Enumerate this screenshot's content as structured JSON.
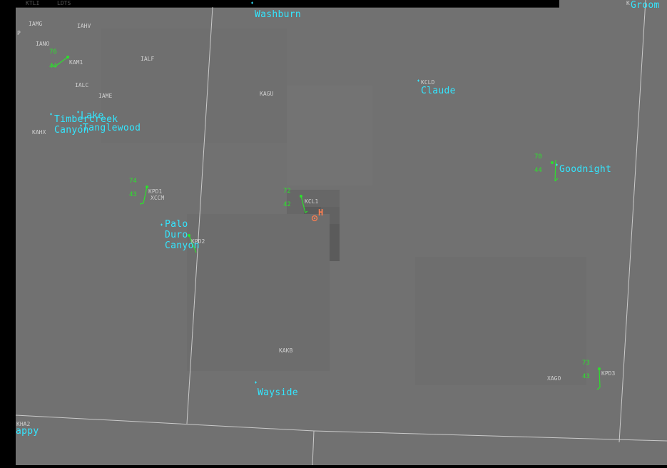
{
  "colors": {
    "background": "#717171",
    "city_label": "#33e6ff",
    "station_obs": "#2de02d",
    "station_id": "#cfcfcf",
    "county_lines": "#d9d9d9",
    "storm_marker": "#ff7f50"
  },
  "header": {
    "partial_text_a": "KTLI",
    "partial_text_b": "LDTS"
  },
  "cities": [
    {
      "id": "washburn",
      "label": "Washburn"
    },
    {
      "id": "groom",
      "label": "Groom"
    },
    {
      "id": "claude",
      "label": "Claude"
    },
    {
      "id": "timbercreek",
      "label": "Timbercreek\nCanyon"
    },
    {
      "id": "lake",
      "label": "Lake"
    },
    {
      "id": "tanglewood",
      "label": "Tanglewood"
    },
    {
      "id": "goodnight",
      "label": "Goodnight"
    },
    {
      "id": "palo_duro",
      "label": "Palo\nDuro\nCanyon"
    },
    {
      "id": "wayside",
      "label": "Wayside"
    },
    {
      "id": "happy",
      "label": "appy"
    }
  ],
  "station_ids": [
    {
      "id": "iamg",
      "label": "IAMG"
    },
    {
      "id": "iahv",
      "label": "IAHV"
    },
    {
      "id": "iano",
      "label": "IANO"
    },
    {
      "id": "p",
      "label": "P"
    },
    {
      "id": "kam1",
      "label": "KAM1"
    },
    {
      "id": "ialf",
      "label": "IALF"
    },
    {
      "id": "ialc",
      "label": "IALC"
    },
    {
      "id": "iame",
      "label": "IAME"
    },
    {
      "id": "kagu",
      "label": "KAGU"
    },
    {
      "id": "kcld",
      "label": "KCLD"
    },
    {
      "id": "kahx",
      "label": "KAHX"
    },
    {
      "id": "kpd1",
      "label": "KPD1"
    },
    {
      "id": "xccm",
      "label": "XCCM"
    },
    {
      "id": "kpd2",
      "label": "KPD2"
    },
    {
      "id": "kcl1",
      "label": "KCL1"
    },
    {
      "id": "kakb",
      "label": "KAKB"
    },
    {
      "id": "xago",
      "label": "XAGO"
    },
    {
      "id": "kpd3",
      "label": "KPD3"
    },
    {
      "id": "kha2",
      "label": "KHA2"
    },
    {
      "id": "kgroom",
      "label": "K"
    }
  ],
  "observations": [
    {
      "id": "kam1",
      "temp": "76",
      "dew": "44"
    },
    {
      "id": "kpd1",
      "temp": "74",
      "dew": "43"
    },
    {
      "id": "kcl1",
      "temp": "72",
      "dew": "42"
    },
    {
      "id": "goodnight",
      "temp": "70",
      "dew": "44"
    },
    {
      "id": "kpd3",
      "temp": "73",
      "dew": "43"
    }
  ],
  "storm_marker": {
    "label": "H"
  }
}
